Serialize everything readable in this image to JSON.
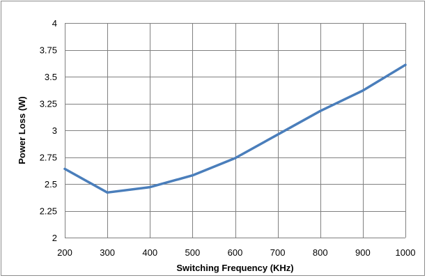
{
  "chart_data": {
    "type": "line",
    "title": "",
    "xlabel": "Switching Frequency (KHz)",
    "ylabel": "Power Loss (W)",
    "x": [
      200,
      300,
      400,
      500,
      600,
      700,
      800,
      900,
      1000
    ],
    "xlim": [
      200,
      1000
    ],
    "ylim": [
      2,
      4
    ],
    "x_ticks": [
      "200",
      "300",
      "400",
      "500",
      "600",
      "700",
      "800",
      "900",
      "1000"
    ],
    "y_ticks": [
      "2",
      "2.25",
      "2.5",
      "2.75",
      "3",
      "3.25",
      "3.5",
      "3.75",
      "4"
    ],
    "grid": true,
    "legend": "none",
    "series": [
      {
        "values": [
          2.64,
          2.42,
          2.47,
          2.58,
          2.74,
          2.96,
          3.18,
          3.37,
          3.61
        ],
        "color": "#4a7ebb"
      }
    ],
    "grid_color": "#808080"
  }
}
